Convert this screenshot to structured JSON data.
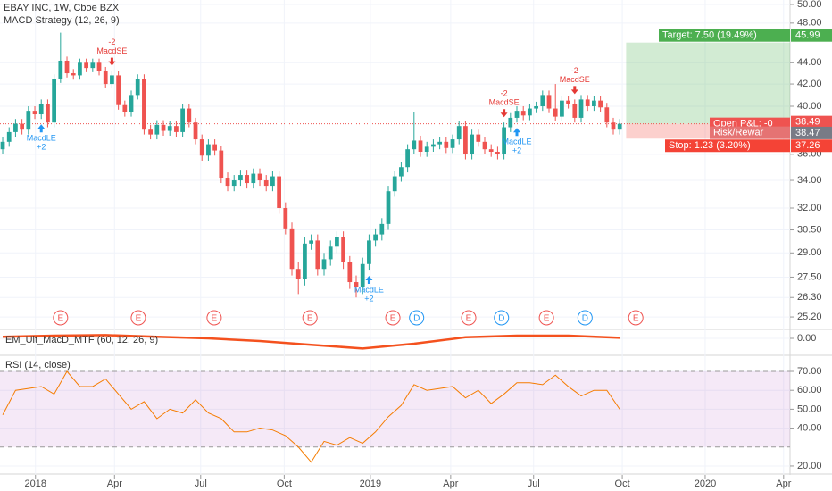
{
  "chart_data": [
    {
      "type": "candlestick",
      "title": "EBAY INC, 1W, Cboe BZX",
      "subtitle": "MACD Strategy (12, 26, 9)",
      "log_scale": true,
      "grid": true,
      "up_color": "#26a69a",
      "down_color": "#ef5350",
      "open": [
        36.4,
        37.0,
        37.8,
        38.5,
        38.0,
        39.6,
        39.3,
        40.2,
        38.6,
        42.5,
        44.2,
        43.0,
        42.8,
        44.0,
        43.5,
        44.0,
        43.2,
        42.0,
        42.8,
        40.1,
        39.5,
        41.0,
        42.5,
        38.0,
        37.6,
        38.4,
        37.9,
        38.3,
        37.8,
        39.8,
        38.6,
        37.2,
        35.9,
        36.8,
        36.3,
        34.2,
        33.6,
        34.0,
        34.4,
        33.8,
        34.5,
        34.0,
        33.6,
        34.3,
        32.0,
        30.6,
        28.0,
        27.4,
        29.6,
        29.8,
        28.0,
        28.6,
        29.4,
        30.0,
        28.4,
        27.2,
        26.9,
        28.3,
        29.8,
        30.2,
        30.9,
        33.2,
        34.3,
        35.0,
        36.4,
        37.1,
        36.2,
        36.6,
        36.8,
        37.0,
        36.5,
        37.2,
        38.3,
        36.0,
        37.6,
        37.0,
        36.4,
        36.2,
        36.0,
        38.2,
        39.0,
        39.6,
        39.2,
        39.8,
        40.0,
        41.0,
        39.8,
        39.1,
        40.5,
        40.2,
        39.0,
        40.6,
        40.0,
        40.5,
        39.9,
        38.6,
        38.0
      ],
      "high": [
        37.4,
        38.2,
        38.9,
        38.9,
        40.0,
        40.0,
        40.6,
        40.6,
        42.9,
        47.0,
        44.6,
        43.4,
        44.4,
        44.4,
        44.4,
        44.4,
        43.6,
        43.2,
        43.2,
        40.5,
        41.4,
        42.9,
        42.9,
        38.4,
        38.8,
        38.8,
        38.7,
        38.7,
        40.2,
        40.2,
        39.0,
        37.6,
        37.2,
        37.2,
        36.7,
        34.6,
        34.4,
        34.8,
        34.8,
        34.9,
        34.9,
        34.4,
        34.7,
        34.7,
        32.4,
        31.0,
        28.4,
        30.0,
        30.2,
        30.2,
        29.0,
        29.8,
        30.4,
        30.4,
        28.8,
        27.6,
        28.7,
        30.2,
        30.6,
        31.3,
        33.6,
        34.7,
        35.4,
        36.8,
        39.5,
        37.5,
        37.0,
        37.2,
        37.4,
        37.4,
        37.6,
        38.7,
        38.7,
        38.0,
        38.0,
        37.4,
        36.8,
        36.6,
        38.6,
        39.4,
        40.0,
        40.0,
        40.2,
        40.4,
        41.4,
        41.4,
        42.0,
        40.9,
        40.9,
        40.6,
        41.0,
        41.0,
        40.9,
        40.9,
        40.3,
        39.0,
        38.9
      ],
      "low": [
        36.0,
        36.6,
        37.4,
        37.6,
        37.6,
        38.9,
        38.9,
        38.2,
        38.2,
        42.1,
        42.6,
        42.4,
        42.4,
        43.1,
        43.1,
        42.8,
        41.6,
        41.6,
        39.7,
        39.1,
        39.1,
        40.6,
        37.6,
        37.2,
        37.2,
        37.5,
        37.5,
        37.4,
        37.4,
        38.2,
        36.8,
        35.5,
        35.5,
        35.9,
        33.8,
        33.2,
        33.2,
        33.6,
        33.4,
        33.4,
        33.6,
        33.2,
        33.2,
        31.6,
        30.2,
        27.6,
        26.5,
        27.0,
        29.2,
        27.6,
        27.6,
        28.2,
        29.0,
        28.0,
        26.8,
        26.3,
        26.5,
        27.9,
        29.4,
        29.8,
        30.5,
        32.8,
        33.9,
        34.6,
        36.0,
        35.8,
        35.8,
        36.2,
        36.4,
        36.1,
        36.1,
        36.8,
        35.6,
        35.6,
        36.6,
        36.0,
        35.8,
        35.6,
        35.6,
        37.8,
        38.6,
        38.8,
        38.8,
        39.4,
        39.6,
        39.4,
        38.7,
        38.7,
        39.8,
        38.6,
        38.6,
        39.6,
        39.6,
        39.5,
        38.2,
        37.6,
        37.6
      ],
      "close": [
        37.0,
        37.8,
        38.5,
        38.0,
        39.6,
        39.3,
        40.2,
        38.6,
        42.5,
        44.2,
        43.0,
        42.8,
        44.0,
        43.5,
        44.0,
        43.2,
        42.0,
        42.8,
        40.1,
        39.5,
        41.0,
        42.5,
        38.0,
        37.6,
        38.4,
        37.9,
        38.3,
        37.8,
        39.8,
        38.6,
        37.2,
        35.9,
        36.8,
        36.3,
        34.2,
        33.6,
        34.0,
        34.4,
        33.8,
        34.5,
        34.0,
        33.6,
        34.3,
        32.0,
        30.6,
        28.0,
        27.4,
        29.6,
        29.8,
        28.0,
        28.6,
        29.4,
        30.0,
        28.4,
        27.2,
        26.9,
        28.3,
        29.8,
        30.2,
        30.9,
        33.2,
        34.3,
        35.0,
        36.4,
        37.1,
        36.2,
        36.6,
        36.8,
        37.0,
        36.5,
        37.2,
        38.3,
        36.0,
        37.6,
        37.0,
        36.4,
        36.2,
        36.0,
        38.2,
        39.0,
        39.6,
        39.2,
        39.8,
        40.0,
        41.0,
        39.8,
        39.1,
        40.5,
        40.2,
        39.0,
        40.6,
        40.0,
        40.5,
        39.9,
        38.6,
        38.0,
        38.49
      ],
      "xlim": [
        -0.42,
        122.5
      ],
      "xticks": [
        {
          "value": 5.1,
          "label": "2018"
        },
        {
          "value": 17.4,
          "label": "Apr"
        },
        {
          "value": 30.8,
          "label": "Jul"
        },
        {
          "value": 43.8,
          "label": "Oct"
        },
        {
          "value": 57.2,
          "label": "2019"
        },
        {
          "value": 69.7,
          "label": "Apr"
        },
        {
          "value": 82.6,
          "label": "Jul"
        },
        {
          "value": 96.4,
          "label": "Oct"
        },
        {
          "value": 109.3,
          "label": "2020"
        },
        {
          "value": 121.5,
          "label": "Apr"
        }
      ],
      "ylim": [
        24.57,
        50.49
      ],
      "yticks": [
        {
          "value": 50,
          "label": "50.00"
        },
        {
          "value": 48,
          "label": "48.00"
        },
        {
          "value": 44,
          "label": "44.00"
        },
        {
          "value": 42,
          "label": "42.00"
        },
        {
          "value": 40,
          "label": "40.00"
        },
        {
          "value": 36,
          "label": "36.00"
        },
        {
          "value": 34,
          "label": "34.00"
        },
        {
          "value": 32,
          "label": "32.00"
        },
        {
          "value": 30.5,
          "label": "30.50"
        },
        {
          "value": 29,
          "label": "29.00"
        },
        {
          "value": 27.5,
          "label": "27.50"
        },
        {
          "value": 26.3,
          "label": "26.30"
        },
        {
          "value": 25.2,
          "label": "25.20"
        }
      ],
      "last_price": 38.49,
      "position": {
        "start": 97,
        "target": 45.99,
        "entry": 38.49,
        "stop": 37.26,
        "rr_price": 38.47,
        "target_label": "Target: 7.50 (19.49%)",
        "pnl_label": "Open P&L: -0",
        "rr_label": "Risk/Rewar",
        "stop_label": "Stop: 1.23 (3.20%)"
      },
      "signals": [
        {
          "x": 6,
          "label": "MacdLE",
          "qty": "+2",
          "position": "below",
          "color": "#2196f3"
        },
        {
          "x": 17,
          "label": "MacdSE",
          "qty": "-2",
          "position": "above",
          "color": "#e53935"
        },
        {
          "x": 57,
          "label": "MacdLE",
          "qty": "+2",
          "position": "below",
          "color": "#2196f3"
        },
        {
          "x": 78,
          "label": "MacdSE",
          "qty": "-2",
          "position": "above",
          "color": "#e53935"
        },
        {
          "x": 80,
          "label": "MacdLE",
          "qty": "+2",
          "position": "below",
          "color": "#2196f3"
        },
        {
          "x": 89,
          "label": "MacdSE",
          "qty": "-2",
          "position": "above",
          "color": "#e53935"
        }
      ],
      "events": [
        {
          "x": 9,
          "label": "E",
          "color": "#ef5350"
        },
        {
          "x": 21.1,
          "label": "E",
          "color": "#ef5350"
        },
        {
          "x": 32.9,
          "label": "E",
          "color": "#ef5350"
        },
        {
          "x": 47.8,
          "label": "E",
          "color": "#ef5350"
        },
        {
          "x": 60.7,
          "label": "E",
          "color": "#ef5350"
        },
        {
          "x": 64.4,
          "label": "D",
          "color": "#2196f3"
        },
        {
          "x": 72.5,
          "label": "E",
          "color": "#ef5350"
        },
        {
          "x": 77.6,
          "label": "D",
          "color": "#2196f3"
        },
        {
          "x": 84.6,
          "label": "E",
          "color": "#ef5350"
        },
        {
          "x": 90.6,
          "label": "D",
          "color": "#2196f3"
        },
        {
          "x": 98.5,
          "label": "E",
          "color": "#ef5350"
        }
      ]
    },
    {
      "type": "line",
      "title": "EM_Ult_MacD_MTF (60, 12, 26, 9)",
      "color": "#f4511e",
      "x": [
        0,
        8,
        16,
        24,
        32,
        40,
        48,
        56,
        64,
        72,
        80,
        88,
        96
      ],
      "values": [
        0.3,
        0.5,
        0.6,
        0.3,
        0.0,
        -0.5,
        -1.2,
        -1.9,
        -1.0,
        0.2,
        0.5,
        0.5,
        0.1
      ],
      "ylim": [
        -3,
        1.5
      ],
      "yticks": [
        {
          "value": 0,
          "label": "0.00"
        }
      ]
    },
    {
      "type": "line",
      "title": "RSI (14, close)",
      "color": "#f57c00",
      "x": [
        0,
        2,
        4,
        6,
        8,
        10,
        12,
        14,
        16,
        18,
        20,
        22,
        24,
        26,
        28,
        30,
        32,
        34,
        36,
        38,
        40,
        42,
        44,
        46,
        48,
        50,
        52,
        54,
        56,
        58,
        60,
        62,
        64,
        66,
        68,
        70,
        72,
        74,
        76,
        78,
        80,
        82,
        84,
        86,
        88,
        90,
        92,
        94,
        96
      ],
      "values": [
        47,
        60,
        61,
        62,
        58,
        70,
        62,
        62,
        66,
        58,
        50,
        54,
        45,
        50,
        48,
        55,
        48,
        45,
        38,
        38,
        40,
        39,
        36,
        30,
        22,
        33,
        31,
        35,
        32,
        38,
        46,
        52,
        63,
        60,
        61,
        62,
        56,
        60,
        53,
        58,
        64,
        64,
        63,
        68,
        62,
        57,
        60,
        60,
        50
      ],
      "ylim": [
        16.2,
        78.5
      ],
      "bands": [
        30,
        70
      ],
      "band_color": "#9c27b0",
      "yticks": [
        {
          "value": 70,
          "label": "70.00"
        },
        {
          "value": 60,
          "label": "60.00"
        },
        {
          "value": 50,
          "label": "50.00"
        },
        {
          "value": 40,
          "label": "40.00"
        },
        {
          "value": 20,
          "label": "20.00"
        }
      ]
    }
  ]
}
